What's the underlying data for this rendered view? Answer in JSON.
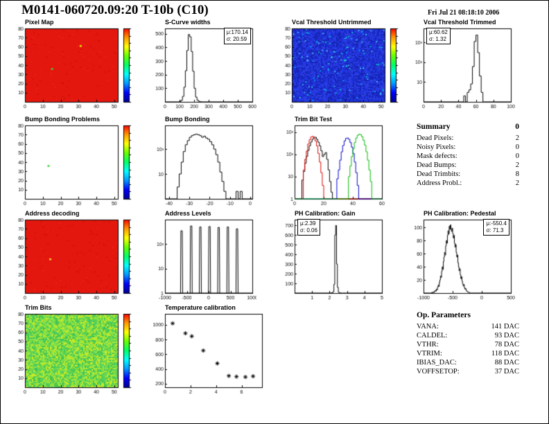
{
  "page": {
    "title": "M0141-060720.09:20 T-10b (C10)",
    "date": "Fri Jul 21 08:18:10 2006"
  },
  "palette": [
    "#000099",
    "#0000ff",
    "#0099ff",
    "#00ffff",
    "#00ff66",
    "#66ff00",
    "#ffff00",
    "#ff9900",
    "#ff0000"
  ],
  "summary": {
    "title": "Summary",
    "total": "0",
    "rows": [
      {
        "label": "Dead Pixels:",
        "value": "2"
      },
      {
        "label": "Noisy Pixels:",
        "value": "0"
      },
      {
        "label": "Mask defects:",
        "value": "0"
      },
      {
        "label": "Dead Bumps:",
        "value": "2"
      },
      {
        "label": "Dead Trimbits:",
        "value": "8"
      },
      {
        "label": "Address Probl.:",
        "value": "2"
      }
    ]
  },
  "op_parameters": {
    "title": "Op. Parameters",
    "rows": [
      {
        "label": "VANA:",
        "value": "141 DAC"
      },
      {
        "label": "CALDEL:",
        "value": "93 DAC"
      },
      {
        "label": "VTHR:",
        "value": "78 DAC"
      },
      {
        "label": "VTRIM:",
        "value": "118 DAC"
      },
      {
        "label": "IBIAS_DAC:",
        "value": "88 DAC"
      },
      {
        "label": "VOFFSETOP:",
        "value": "37 DAC"
      }
    ]
  },
  "chart_data": [
    {
      "id": "pixel-map",
      "type": "heatmap",
      "title": "Pixel Map",
      "x": {
        "min": 0,
        "max": 52,
        "ticks": [
          0,
          10,
          20,
          30,
          40,
          50
        ]
      },
      "y": {
        "min": 0,
        "max": 80,
        "ticks": [
          10,
          20,
          30,
          40,
          50,
          60,
          70,
          80
        ]
      },
      "heat": {
        "base": "#e3170d",
        "speckle": {
          "count": 90,
          "colors": [
            "#d01208",
            "#f02515",
            "#cc1005"
          ]
        },
        "dots": [
          {
            "x": 15,
            "y": 36,
            "c": "#3fd43f"
          },
          {
            "x": 31,
            "y": 61,
            "c": "#d8f000"
          }
        ],
        "colorbar": true
      }
    },
    {
      "id": "scurve-widths",
      "type": "bar",
      "title": "S-Curve widths",
      "x": {
        "min": 0,
        "max": 600,
        "ticks": [
          0,
          100,
          200,
          300,
          400,
          500,
          600
        ]
      },
      "y": {
        "min": 0,
        "max": 540,
        "ticks": [
          100,
          200,
          300,
          400,
          500
        ]
      },
      "bins": {
        "xmin": 100,
        "xmax": 250,
        "counts": [
          3,
          11,
          40,
          108,
          229,
          378,
          495,
          478,
          370,
          225,
          100,
          35,
          12,
          4,
          1
        ]
      },
      "color": "#000000",
      "stats": {
        "line1": "μ:170.14",
        "line2": "σ: 20.59",
        "pos": "right"
      }
    },
    {
      "id": "vcal-untrimmed",
      "type": "heatmap",
      "title": "Vcal Threshold Untrimmed",
      "x": {
        "min": 0,
        "max": 52,
        "ticks": [
          0,
          10,
          20,
          30,
          40,
          50
        ]
      },
      "y": {
        "min": 0,
        "max": 80,
        "ticks": [
          10,
          20,
          30,
          40,
          50,
          60,
          70,
          80
        ]
      },
      "heat": {
        "base": "#2233cc",
        "noise": [
          "#1f30d8",
          "#2438e8",
          "#1828c0",
          "#2c40e0",
          "#1524b4"
        ],
        "speckle": {
          "count": 120,
          "colors": [
            "#00bfff",
            "#4fd6ff",
            "#00e0c0"
          ]
        },
        "colorbar": true
      }
    },
    {
      "id": "vcal-trimmed",
      "type": "bar",
      "title": "Vcal Threshold Trimmed",
      "x": {
        "min": 0,
        "max": 100,
        "ticks": [
          0,
          20,
          40,
          60,
          80,
          100
        ]
      },
      "y": {
        "min": 1,
        "max": 5000,
        "log": true,
        "ticks": [
          {
            "v": 10,
            "l": "10"
          },
          {
            "v": 100,
            "l": "10²"
          },
          {
            "v": 1000,
            "l": "10³"
          }
        ]
      },
      "bins": {
        "xmin": 40,
        "xmax": 70,
        "counts": [
          0,
          0,
          1,
          2,
          1,
          3,
          4,
          8,
          60,
          1100,
          2300,
          300,
          20,
          3,
          1
        ]
      },
      "color": "#000000",
      "stats": {
        "line1": "μ:60.62",
        "line2": "σ: 1.32",
        "pos": "left"
      }
    },
    {
      "id": "bump-problems",
      "type": "heatmap",
      "title": "Bump Bonding Problems",
      "x": {
        "min": 0,
        "max": 52,
        "ticks": [
          0,
          10,
          20,
          30,
          40,
          50
        ]
      },
      "y": {
        "min": 0,
        "max": 80,
        "ticks": [
          10,
          20,
          30,
          40,
          50,
          60,
          70,
          80
        ]
      },
      "heat": {
        "base": "#ffffff",
        "dots": [
          {
            "x": 13,
            "y": 36,
            "c": "#3fd43f"
          }
        ],
        "colorbar": true
      }
    },
    {
      "id": "bump-bonding",
      "type": "bar",
      "title": "Bump Bonding",
      "x": {
        "min": -42,
        "max": 1,
        "ticks": [
          -40,
          -30,
          -20,
          -10,
          0
        ]
      },
      "y": {
        "min": 1,
        "max": 900,
        "log": true,
        "ticks": [
          {
            "v": 10,
            "l": "10"
          },
          {
            "v": 100,
            "l": "10²"
          }
        ]
      },
      "bins": {
        "xmin": -40,
        "xmax": 0,
        "counts": [
          0,
          0,
          0,
          1,
          3,
          10,
          30,
          80,
          150,
          220,
          300,
          350,
          380,
          400,
          380,
          350,
          300,
          330,
          280,
          250,
          200,
          150,
          100,
          60,
          30,
          12,
          5,
          2,
          0,
          0,
          0,
          0,
          0,
          2,
          0,
          2,
          0,
          0,
          0,
          0
        ]
      },
      "color": "#000000"
    },
    {
      "id": "trim-bit-test",
      "type": "bar",
      "title": "Trim Bit Test",
      "x": {
        "min": 0,
        "max": 60,
        "ticks": [
          0,
          20,
          40,
          60
        ]
      },
      "y": {
        "min": 1,
        "max": 2000,
        "log": true,
        "ticks": [
          {
            "v": 1,
            "l": "1"
          },
          {
            "v": 10,
            "l": "10"
          },
          {
            "v": 100,
            "l": "10²"
          },
          {
            "v": 1000,
            "l": "10³"
          }
        ]
      },
      "bins": {
        "xmin": 0,
        "xmax": 60
      },
      "series": [
        {
          "name": "trim-bits-0",
          "color": "#000000",
          "counts": [
            0,
            0,
            0,
            0,
            0,
            7,
            17,
            40,
            81,
            150,
            246,
            360,
            480,
            590,
            585,
            470,
            350,
            240,
            145,
            80,
            100,
            120,
            60,
            20,
            6,
            2,
            0,
            0,
            0,
            0,
            0,
            0,
            0,
            0,
            0,
            0,
            0,
            0,
            0,
            0,
            0,
            0,
            0,
            0,
            0,
            0,
            0,
            0,
            0,
            0,
            0,
            0,
            0,
            0,
            0,
            0,
            0,
            0,
            0,
            0
          ]
        },
        {
          "name": "trim-bits-1",
          "color": "#dd0000",
          "counts": [
            0,
            0,
            0,
            0,
            0,
            0,
            20,
            60,
            140,
            290,
            450,
            600,
            640,
            560,
            400,
            240,
            110,
            45,
            15,
            4,
            0,
            0,
            0,
            0,
            0,
            0,
            0,
            0,
            0,
            0,
            0,
            0,
            0,
            0,
            0,
            0,
            0,
            0,
            0,
            0,
            0,
            0,
            0,
            0,
            0,
            0,
            0,
            0,
            0,
            0,
            0,
            0,
            0,
            0,
            0,
            0,
            0,
            0,
            0,
            0
          ]
        },
        {
          "name": "trim-bits-2",
          "color": "#0000cc",
          "counts": [
            0,
            0,
            0,
            0,
            0,
            0,
            0,
            0,
            0,
            0,
            0,
            0,
            0,
            0,
            0,
            0,
            0,
            0,
            0,
            0,
            0,
            0,
            0,
            0,
            0,
            0,
            0,
            0,
            0,
            8,
            20,
            55,
            130,
            250,
            400,
            520,
            545,
            470,
            340,
            210,
            110,
            45,
            15,
            4,
            0,
            0,
            0,
            0,
            0,
            0,
            0,
            0,
            0,
            0,
            0,
            0,
            0,
            0,
            0,
            0
          ]
        },
        {
          "name": "trim-bits-3",
          "color": "#00bb00",
          "counts": [
            0,
            0,
            0,
            0,
            0,
            0,
            0,
            0,
            0,
            0,
            0,
            0,
            0,
            0,
            0,
            0,
            0,
            0,
            0,
            0,
            0,
            0,
            0,
            0,
            0,
            0,
            0,
            0,
            0,
            0,
            0,
            0,
            0,
            0,
            0,
            0,
            0,
            10,
            30,
            80,
            180,
            340,
            540,
            720,
            800,
            760,
            620,
            430,
            260,
            130,
            55,
            20,
            6,
            0,
            0,
            0,
            0,
            0,
            0,
            0
          ]
        }
      ]
    },
    {
      "id": "address-decoding",
      "type": "heatmap",
      "title": "Address decoding",
      "x": {
        "min": 0,
        "max": 52,
        "ticks": [
          0,
          10,
          20,
          30,
          40,
          50
        ]
      },
      "y": {
        "min": 0,
        "max": 80,
        "ticks": [
          10,
          20,
          30,
          40,
          50,
          60,
          70,
          80
        ]
      },
      "heat": {
        "base": "#e3170d",
        "speckle": {
          "count": 90,
          "colors": [
            "#d01208",
            "#f02515",
            "#cc1005"
          ]
        },
        "dots": [
          {
            "x": 14,
            "y": 37,
            "c": "#ffcf40"
          }
        ],
        "colorbar": true
      }
    },
    {
      "id": "address-levels",
      "type": "bar",
      "title": "Address Levels",
      "x": {
        "min": -1000,
        "max": 1000,
        "ticks": [
          -1000,
          -500,
          0,
          500,
          1000
        ]
      },
      "y": {
        "min": 1,
        "max": 1000,
        "log": true,
        "ticks": [
          {
            "v": 1,
            "l": "1"
          },
          {
            "v": 10,
            "l": "10"
          },
          {
            "v": 100,
            "l": "10²"
          }
        ]
      },
      "spikes": [
        [
          -620,
          350
        ],
        [
          -400,
          550
        ],
        [
          -190,
          500
        ],
        [
          20,
          520
        ],
        [
          230,
          480
        ],
        [
          440,
          500
        ],
        [
          650,
          420
        ]
      ],
      "color": "#000000"
    },
    {
      "id": "ph-gain",
      "type": "bar",
      "title": "PH Calibration: Gain",
      "x": {
        "min": 0,
        "max": 5,
        "ticks": [
          1,
          2,
          3,
          4,
          5
        ]
      },
      "y": {
        "min": 0,
        "max": 760,
        "ticks": [
          100,
          200,
          300,
          400,
          500,
          600,
          700
        ]
      },
      "bins": {
        "xmin": 2.0,
        "xmax": 3.0,
        "counts": [
          0,
          1,
          2,
          5,
          15,
          90,
          600,
          700,
          300,
          60,
          10,
          2,
          1,
          0,
          0,
          0,
          0,
          0,
          0,
          0
        ]
      },
      "color": "#000000",
      "stats": {
        "line1": "μ:2.39",
        "line2": "σ: 0.06",
        "pos": "left"
      }
    },
    {
      "id": "ph-pedestal",
      "type": "bar",
      "title": "PH Calibration: Pedestal",
      "x": {
        "min": -1000,
        "max": 500,
        "ticks": [
          -1000,
          -500,
          0,
          500
        ]
      },
      "y": {
        "min": 0,
        "max": 112,
        "ticks": [
          20,
          40,
          60,
          80,
          100
        ]
      },
      "bins": {
        "xmin": -900,
        "xmax": -200,
        "counts": [
          0,
          0,
          0,
          0,
          1,
          0,
          1,
          2,
          1,
          3,
          4,
          3,
          6,
          5,
          9,
          12,
          10,
          16,
          20,
          26,
          24,
          33,
          40,
          36,
          48,
          55,
          62,
          58,
          72,
          80,
          76,
          88,
          95,
          90,
          102,
          97,
          104,
          98,
          94,
          99,
          91,
          84,
          88,
          76,
          70,
          74,
          62,
          55,
          58,
          46,
          40,
          34,
          37,
          28,
          22,
          25,
          18,
          14,
          11,
          13,
          8,
          6,
          7,
          4,
          3,
          2,
          2,
          1,
          1,
          0
        ]
      },
      "color": "#000000",
      "stats": {
        "line1": "μ:-550.4",
        "line2": "σ: 71.3",
        "pos": "right"
      }
    },
    {
      "id": "trim-bits",
      "type": "heatmap",
      "title": "Trim Bits",
      "x": {
        "min": 0,
        "max": 52,
        "ticks": [
          0,
          10,
          20,
          30,
          40,
          50
        ]
      },
      "y": {
        "min": 0,
        "max": 80,
        "ticks": [
          10,
          20,
          30,
          40,
          50,
          60,
          70,
          80
        ]
      },
      "heat": {
        "noise": [
          "#49c94f",
          "#5ed457",
          "#74dd4e",
          "#8fe23e",
          "#b4e831",
          "#57cf62",
          "#3fc356",
          "#a0e437",
          "#cdea25"
        ],
        "speckle": {
          "count": 60,
          "colors": [
            "#ffe81f",
            "#2aa93c",
            "#e4f21a"
          ]
        },
        "colorbar": true
      }
    },
    {
      "id": "temperature",
      "type": "scatter",
      "title": "Temperature calibration",
      "x": {
        "min": 0,
        "max": 7.6,
        "ticks": [
          0,
          2,
          4,
          6
        ]
      },
      "y": {
        "min": 150,
        "max": 1150,
        "ticks": [
          200,
          400,
          600,
          800,
          1000
        ]
      },
      "points": [
        [
          0.6,
          1020
        ],
        [
          1.6,
          885
        ],
        [
          2.1,
          845
        ],
        [
          3.0,
          650
        ],
        [
          4.1,
          475
        ],
        [
          5.0,
          305
        ],
        [
          5.6,
          295
        ],
        [
          6.3,
          290
        ],
        [
          6.9,
          300
        ]
      ],
      "marker": "star",
      "color": "#000000"
    }
  ]
}
